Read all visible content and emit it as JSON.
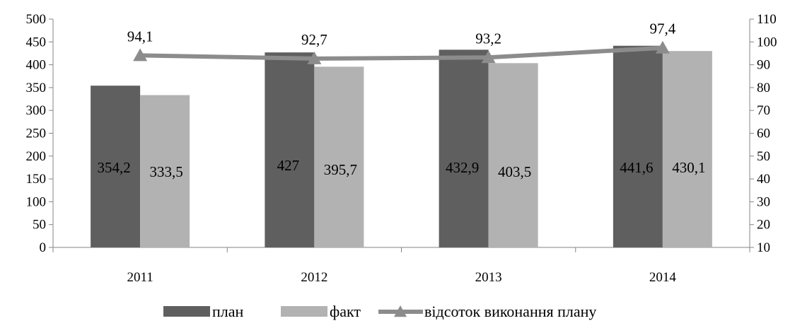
{
  "chart_data": {
    "type": "bar",
    "categories": [
      "2011",
      "2012",
      "2013",
      "2014"
    ],
    "series": [
      {
        "name": "план",
        "type": "bar",
        "axis": "left",
        "color": "#5f5f5f",
        "values": [
          354.2,
          427,
          432.9,
          441.6
        ],
        "labels": [
          "354,2",
          "427",
          "432,9",
          "441,6"
        ]
      },
      {
        "name": "факт",
        "type": "bar",
        "axis": "left",
        "color": "#b2b2b2",
        "values": [
          333.5,
          395.7,
          403.5,
          430.1
        ],
        "labels": [
          "333,5",
          "395,7",
          "403,5",
          "430,1"
        ]
      },
      {
        "name": "відсоток виконання плану",
        "type": "line",
        "axis": "right",
        "color": "#8c8c8c",
        "marker": "triangle",
        "values": [
          94.1,
          92.7,
          93.2,
          97.4
        ],
        "labels": [
          "94,1",
          "92,7",
          "93,2",
          "97,4"
        ]
      }
    ],
    "y_left": {
      "min": 0,
      "max": 500,
      "step": 50,
      "ticks": [
        "0",
        "50",
        "100",
        "150",
        "200",
        "250",
        "300",
        "350",
        "400",
        "450",
        "500"
      ]
    },
    "y_right": {
      "min": 10,
      "max": 110,
      "step": 10,
      "ticks": [
        "10",
        "20",
        "30",
        "40",
        "50",
        "60",
        "70",
        "80",
        "90",
        "100",
        "110"
      ]
    },
    "grid": false,
    "legend": "bottom"
  }
}
